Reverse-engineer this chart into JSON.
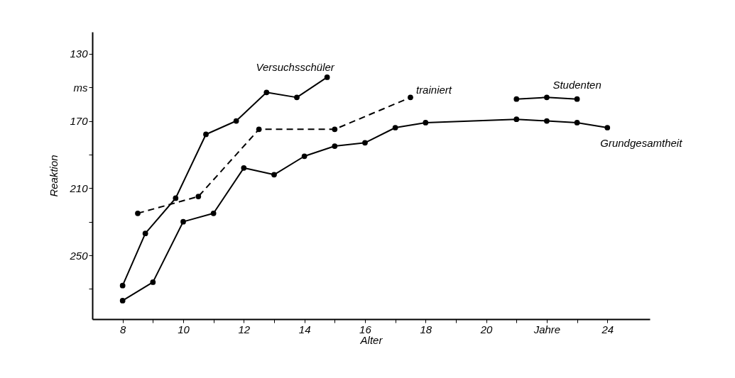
{
  "chart_data": {
    "type": "line",
    "xlabel": "Alter",
    "ylabel": "Reaktion",
    "xlim": [
      7,
      25.4
    ],
    "ylim": [
      288,
      117
    ],
    "xticks": [
      8,
      {
        "value": 9,
        "label": null
      },
      10,
      {
        "value": 11,
        "label": null
      },
      12,
      {
        "value": 13,
        "label": null
      },
      14,
      {
        "value": 15,
        "label": null
      },
      16,
      {
        "value": 17,
        "label": null
      },
      18,
      {
        "value": 19,
        "label": null
      },
      20,
      {
        "value": 21,
        "label": null
      },
      {
        "value": 22,
        "label": "Jahre"
      },
      {
        "value": 23,
        "label": null
      },
      24
    ],
    "yticks": [
      130,
      {
        "value": 150,
        "label": "ms"
      },
      170,
      {
        "value": 190,
        "label": null
      },
      210,
      {
        "value": 230,
        "label": null
      },
      250,
      {
        "value": 270,
        "label": null
      }
    ],
    "grid": false,
    "marker": "circle",
    "series": [
      {
        "name": "Versuchsschüler",
        "color": "#000000",
        "x": [
          8,
          8.75,
          9.75,
          10.75,
          11.75,
          12.75,
          13.75,
          14.75
        ],
        "values": [
          268,
          237,
          216,
          178,
          170,
          153,
          156,
          144
        ],
        "line_style": "solid"
      },
      {
        "name": "trainiert",
        "color": "#000000",
        "x": [
          8.5,
          10.5,
          12.5,
          15,
          17.5
        ],
        "values": [
          225,
          215,
          175,
          175,
          156
        ],
        "line_style": "dashed"
      },
      {
        "name": "Studenten",
        "color": "#000000",
        "x": [
          21,
          22,
          23
        ],
        "values": [
          157,
          156,
          157
        ],
        "line_style": "solid"
      },
      {
        "name": "Grundgesamtheit",
        "color": "#000000",
        "x": [
          8,
          9,
          10,
          11,
          12,
          13,
          14,
          15,
          16,
          17,
          18,
          21,
          22,
          23,
          24
        ],
        "values": [
          277,
          266,
          230,
          225,
          198,
          202,
          191,
          185,
          183,
          174,
          171,
          169,
          170,
          171,
          174
        ],
        "line_style": "solid"
      }
    ]
  }
}
